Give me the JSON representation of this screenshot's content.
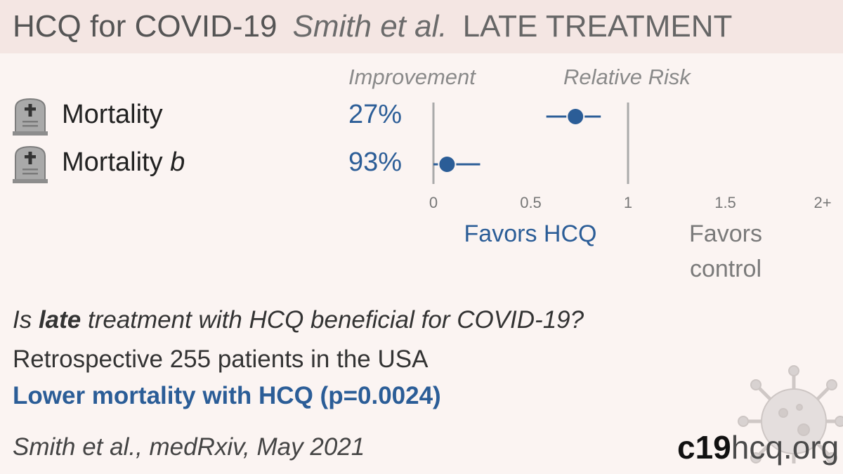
{
  "header": {
    "title": "HCQ for COVID-19",
    "author": "Smith et al.",
    "stage": "LATE TREATMENT"
  },
  "columns": {
    "improvement": "Improvement",
    "relative_risk": "Relative Risk"
  },
  "rows": [
    {
      "label": "Mortality",
      "label_suffix": "",
      "improvement": "27%",
      "icon": "tombstone-icon"
    },
    {
      "label": "Mortality ",
      "label_suffix": "b",
      "improvement": "93%",
      "icon": "tombstone-icon"
    }
  ],
  "chart_data": {
    "type": "scatter",
    "title": "",
    "xlabel": "Relative Risk",
    "ylabel": "",
    "xlim": [
      0,
      2
    ],
    "ticks": [
      {
        "value": 0,
        "label": "0"
      },
      {
        "value": 0.5,
        "label": "0.5"
      },
      {
        "value": 1,
        "label": "1"
      },
      {
        "value": 1.5,
        "label": "1.5"
      },
      {
        "value": 2,
        "label": "2+"
      }
    ],
    "series": [
      {
        "points": [
          {
            "category": "Mortality",
            "rr": 0.73,
            "ci": [
              0.58,
              0.86
            ]
          },
          {
            "category": "Mortality b",
            "rr": 0.07,
            "ci": [
              0.0,
              0.24
            ]
          }
        ]
      }
    ],
    "reference_lines": [
      0,
      1
    ],
    "colors": {
      "point": "#2b5d97",
      "reference": "#aaaaaa",
      "tick_label": "#777777"
    }
  },
  "favors": {
    "treatment": "Favors HCQ",
    "control": "Favors control"
  },
  "summary": {
    "q_prefix": "Is ",
    "q_bold": "late",
    "q_suffix": " treatment with HCQ beneficial for COVID-19?",
    "design": "Retrospective 255 patients in the USA",
    "result": "Lower mortality with HCQ (p=0.0024)"
  },
  "citation": "Smith et al., medRxiv, May 2021",
  "site": {
    "part1": "c19",
    "part2": "hcq.org"
  }
}
